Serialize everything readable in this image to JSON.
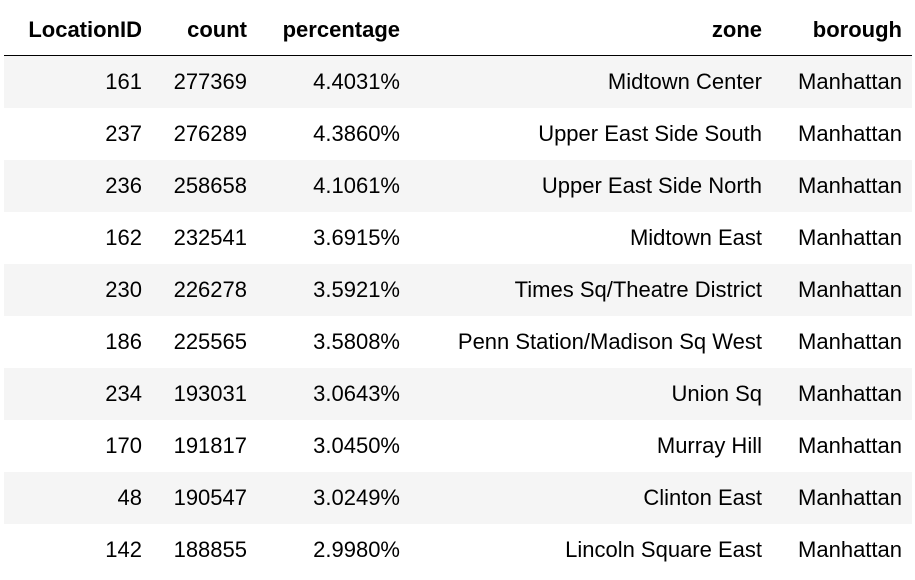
{
  "table": {
    "columns": [
      "LocationID",
      "count",
      "percentage",
      "zone",
      "borough"
    ],
    "rows": [
      {
        "LocationID": "161",
        "count": "277369",
        "percentage": "4.4031%",
        "zone": "Midtown Center",
        "borough": "Manhattan"
      },
      {
        "LocationID": "237",
        "count": "276289",
        "percentage": "4.3860%",
        "zone": "Upper East Side South",
        "borough": "Manhattan"
      },
      {
        "LocationID": "236",
        "count": "258658",
        "percentage": "4.1061%",
        "zone": "Upper East Side North",
        "borough": "Manhattan"
      },
      {
        "LocationID": "162",
        "count": "232541",
        "percentage": "3.6915%",
        "zone": "Midtown East",
        "borough": "Manhattan"
      },
      {
        "LocationID": "230",
        "count": "226278",
        "percentage": "3.5921%",
        "zone": "Times Sq/Theatre District",
        "borough": "Manhattan"
      },
      {
        "LocationID": "186",
        "count": "225565",
        "percentage": "3.5808%",
        "zone": "Penn Station/Madison Sq West",
        "borough": "Manhattan"
      },
      {
        "LocationID": "234",
        "count": "193031",
        "percentage": "3.0643%",
        "zone": "Union Sq",
        "borough": "Manhattan"
      },
      {
        "LocationID": "170",
        "count": "191817",
        "percentage": "3.0450%",
        "zone": "Murray Hill",
        "borough": "Manhattan"
      },
      {
        "LocationID": "48",
        "count": "190547",
        "percentage": "3.0249%",
        "zone": "Clinton East",
        "borough": "Manhattan"
      },
      {
        "LocationID": "142",
        "count": "188855",
        "percentage": "2.9980%",
        "zone": "Lincoln Square East",
        "borough": "Manhattan"
      }
    ]
  }
}
